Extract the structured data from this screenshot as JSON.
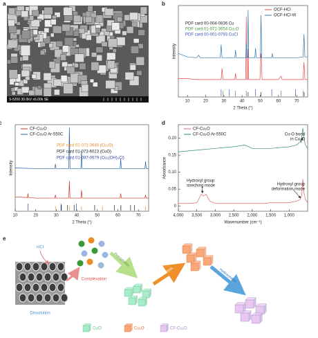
{
  "chart_data": [
    {
      "type": "line",
      "panel_label": "b",
      "xlabel": "2 Theta (°)",
      "ylabel": "Intensity",
      "xlim": [
        5,
        76
      ],
      "ylim": [
        0,
        105
      ],
      "xticks": [
        10,
        20,
        30,
        40,
        50,
        60,
        70
      ],
      "legend": "upper right",
      "series": [
        {
          "name": "OCF-HCl",
          "color": "#e8474a",
          "x": [
            5,
            10,
            15,
            20,
            25,
            28.5,
            29.0,
            29.5,
            30,
            35,
            36.0,
            36.4,
            36.8,
            40,
            42.0,
            42.3,
            42.6,
            43.0,
            43.3,
            43.6,
            49.8,
            50.4,
            51.0,
            55,
            60,
            61.4,
            62,
            70,
            73.5,
            74.0,
            74.5,
            76
          ],
          "values": [
            21,
            21,
            20,
            20,
            20,
            20,
            33,
            20,
            20,
            20,
            20,
            27,
            20,
            20,
            20,
            92,
            20,
            20,
            55,
            20,
            20,
            50,
            20,
            20,
            20,
            24,
            20,
            20,
            20,
            40,
            20,
            20
          ]
        },
        {
          "name": "OCF-HCl-W",
          "color": "#2a77b5",
          "x": [
            5,
            10,
            15,
            16.2,
            17,
            20,
            25,
            28.0,
            28.5,
            29.0,
            33,
            36.0,
            36.4,
            36.8,
            40,
            42.0,
            42.3,
            42.6,
            43.0,
            43.3,
            43.6,
            47.0,
            47.4,
            47.8,
            50.0,
            50.4,
            50.8,
            56.2,
            56.6,
            57.0,
            60,
            65,
            70,
            73.5,
            74.0,
            74.5,
            76
          ],
          "values": [
            50,
            46,
            45,
            48,
            45,
            45,
            45,
            45,
            60,
            45,
            45,
            45,
            54,
            45,
            45,
            45,
            62,
            45,
            45,
            100,
            45,
            45,
            56,
            45,
            45,
            94,
            45,
            45,
            50,
            45,
            45,
            45,
            45,
            46,
            72,
            46,
            46
          ]
        }
      ],
      "references": [
        {
          "name": "PDF card 00-004-0836 Cu",
          "color": "#222222",
          "x": [
            43.3,
            50.4,
            74.1
          ]
        },
        {
          "name": "PDF card 01-071-3654 Cu₂O",
          "color": "#3a9a3a",
          "x": [
            29.6,
            36.4,
            42.3,
            61.4,
            73.5
          ]
        },
        {
          "name": "PDF card 00-001-0793 CuCl",
          "color": "#3355bb",
          "x": [
            28.5,
            33.0,
            47.4,
            56.3,
            69.4
          ]
        }
      ]
    },
    {
      "type": "line",
      "panel_label": "c",
      "xlabel": "2 Theta (°)",
      "ylabel": "Intensity",
      "xlim": [
        10,
        75
      ],
      "ylim": [
        0,
        132
      ],
      "xticks": [
        10,
        20,
        30,
        40,
        50,
        60,
        70
      ],
      "legend": "upper left",
      "series": [
        {
          "name": "CF-Cu₂O",
          "color": "#cc3322",
          "x": [
            10,
            15,
            16.0,
            16.2,
            16.4,
            20,
            29.3,
            29.6,
            29.9,
            36.1,
            36.4,
            36.7,
            42.0,
            42.3,
            42.6,
            50,
            61.1,
            61.4,
            61.7,
            70,
            73.2,
            73.5,
            73.8,
            75
          ],
          "values": [
            22,
            21,
            21,
            27,
            21,
            20,
            20,
            25,
            20,
            20,
            46,
            20,
            20,
            32,
            20,
            20,
            20,
            27,
            20,
            20,
            20,
            25,
            20,
            20
          ]
        },
        {
          "name": "CF-Cu₂O Ar-550C",
          "color": "#1f5fa8",
          "x": [
            10,
            20,
            29.3,
            29.6,
            29.9,
            36.1,
            36.4,
            36.7,
            42.0,
            42.3,
            42.6,
            50,
            61.1,
            61.4,
            61.7,
            70,
            73.2,
            73.5,
            73.8,
            75
          ],
          "values": [
            66,
            65,
            65,
            72,
            65,
            65,
            128,
            65,
            65,
            92,
            65,
            65,
            65,
            80,
            65,
            65,
            65,
            76,
            65,
            65
          ]
        }
      ],
      "references": [
        {
          "name": "PDF card 01-071-3645 (Cu₂O)",
          "color": "#f08a24",
          "x": [
            29.6,
            36.4,
            42.3,
            52.5,
            61.4,
            73.5
          ]
        },
        {
          "name": "PDF card 01-073-6023 (CuO)",
          "color": "#222222",
          "x": [
            32.5,
            35.5,
            38.7,
            48.7,
            58.3,
            61.5,
            66.2,
            68.1
          ]
        },
        {
          "name": "PDF card 01-087-0679 (Cu₂(OH)₃Cl)",
          "color": "#3344aa",
          "x": [
            16.2,
            32.3,
            39.8
          ]
        }
      ]
    },
    {
      "type": "line",
      "panel_label": "d",
      "xlabel": "Wavenumber (cm⁻¹)",
      "ylabel": "Absorbance",
      "xlim": [
        4000,
        500
      ],
      "ylim": [
        -0.015,
        0.24
      ],
      "xticks": [
        {
          "value": 4000,
          "label": "4,000"
        },
        {
          "value": 3500,
          "label": "3,500"
        },
        {
          "value": 3000,
          "label": "3,000"
        },
        {
          "value": 2500,
          "label": "2,500"
        },
        {
          "value": 2000,
          "label": "2,000"
        },
        {
          "value": 1500,
          "label": "1,500"
        },
        {
          "value": 1000,
          "label": "1,000"
        }
      ],
      "yticks": [
        0,
        0.05,
        {
          "value": 0.1,
          "label": "0.10"
        },
        0.15,
        {
          "value": 0.2,
          "label": "0.20"
        }
      ],
      "legend": "upper left",
      "series": [
        {
          "name": "CF-Cu₂O",
          "color": "#e06666",
          "x": [
            4000,
            3700,
            3500,
            3450,
            3380,
            3320,
            3250,
            3150,
            3000,
            2500,
            2000,
            1700,
            1500,
            1000,
            800,
            700,
            660,
            630,
            600,
            560,
            500
          ],
          "values": [
            0.008,
            0.008,
            0.01,
            0.02,
            0.035,
            0.03,
            0.035,
            0.015,
            0.008,
            0.008,
            0.008,
            0.008,
            0.01,
            0.01,
            0.015,
            0.02,
            0.03,
            0.08,
            0.04,
            0.02,
            0.01
          ]
        },
        {
          "name": "CF-Cu₂O Ar-550C",
          "color": "#2e8b6e",
          "x": [
            4000,
            3500,
            3000,
            2500,
            2200,
            2000,
            1500,
            1000,
            800,
            700,
            660,
            630,
            600,
            560,
            500
          ],
          "values": [
            0.16,
            0.165,
            0.17,
            0.175,
            0.18,
            0.17,
            0.17,
            0.175,
            0.18,
            0.19,
            0.2,
            0.23,
            0.2,
            0.18,
            0.17
          ]
        }
      ],
      "annotations": [
        [
          "Cu-O bond",
          "in Cu₂O"
        ],
        [
          "Hydroxyl group",
          "streching mode"
        ],
        [
          "Hydroxyl group",
          "deformation mode"
        ]
      ]
    }
  ],
  "sem_image": {
    "panel_label": "a",
    "caption": "S-5200 30.0kV x6.00k SE"
  },
  "schematic": {
    "panel_label": "e",
    "steps": [
      "HCl",
      "Dissolution",
      "Complexation",
      "Precipitation",
      "Hydrolysis",
      "Hydroxylation"
    ],
    "legend": [
      "CuCl",
      "Cu₂O",
      "CF-Cu₂O"
    ]
  }
}
